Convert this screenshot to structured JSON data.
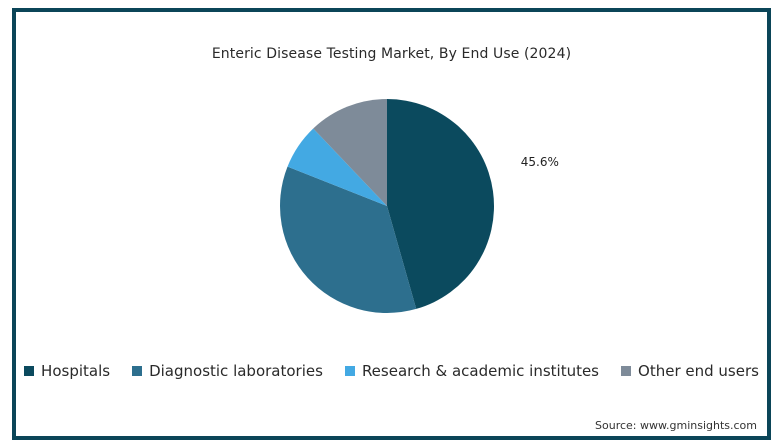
{
  "chart_data": {
    "type": "pie",
    "title": "Enteric Disease Testing Market, By End Use (2024)",
    "categories": [
      "Hospitals",
      "Diagnostic laboratories",
      "Research & academic institutes",
      "Other end users"
    ],
    "values": [
      45.6,
      35.4,
      6.9,
      12.1
    ],
    "colors": [
      "#0b4a5e",
      "#2d6f8e",
      "#43a9e3",
      "#7e8b99"
    ],
    "data_labels": [
      "45.6%",
      "",
      "",
      ""
    ],
    "legend_position": "bottom"
  },
  "source": "Source: www.gminsights.com"
}
